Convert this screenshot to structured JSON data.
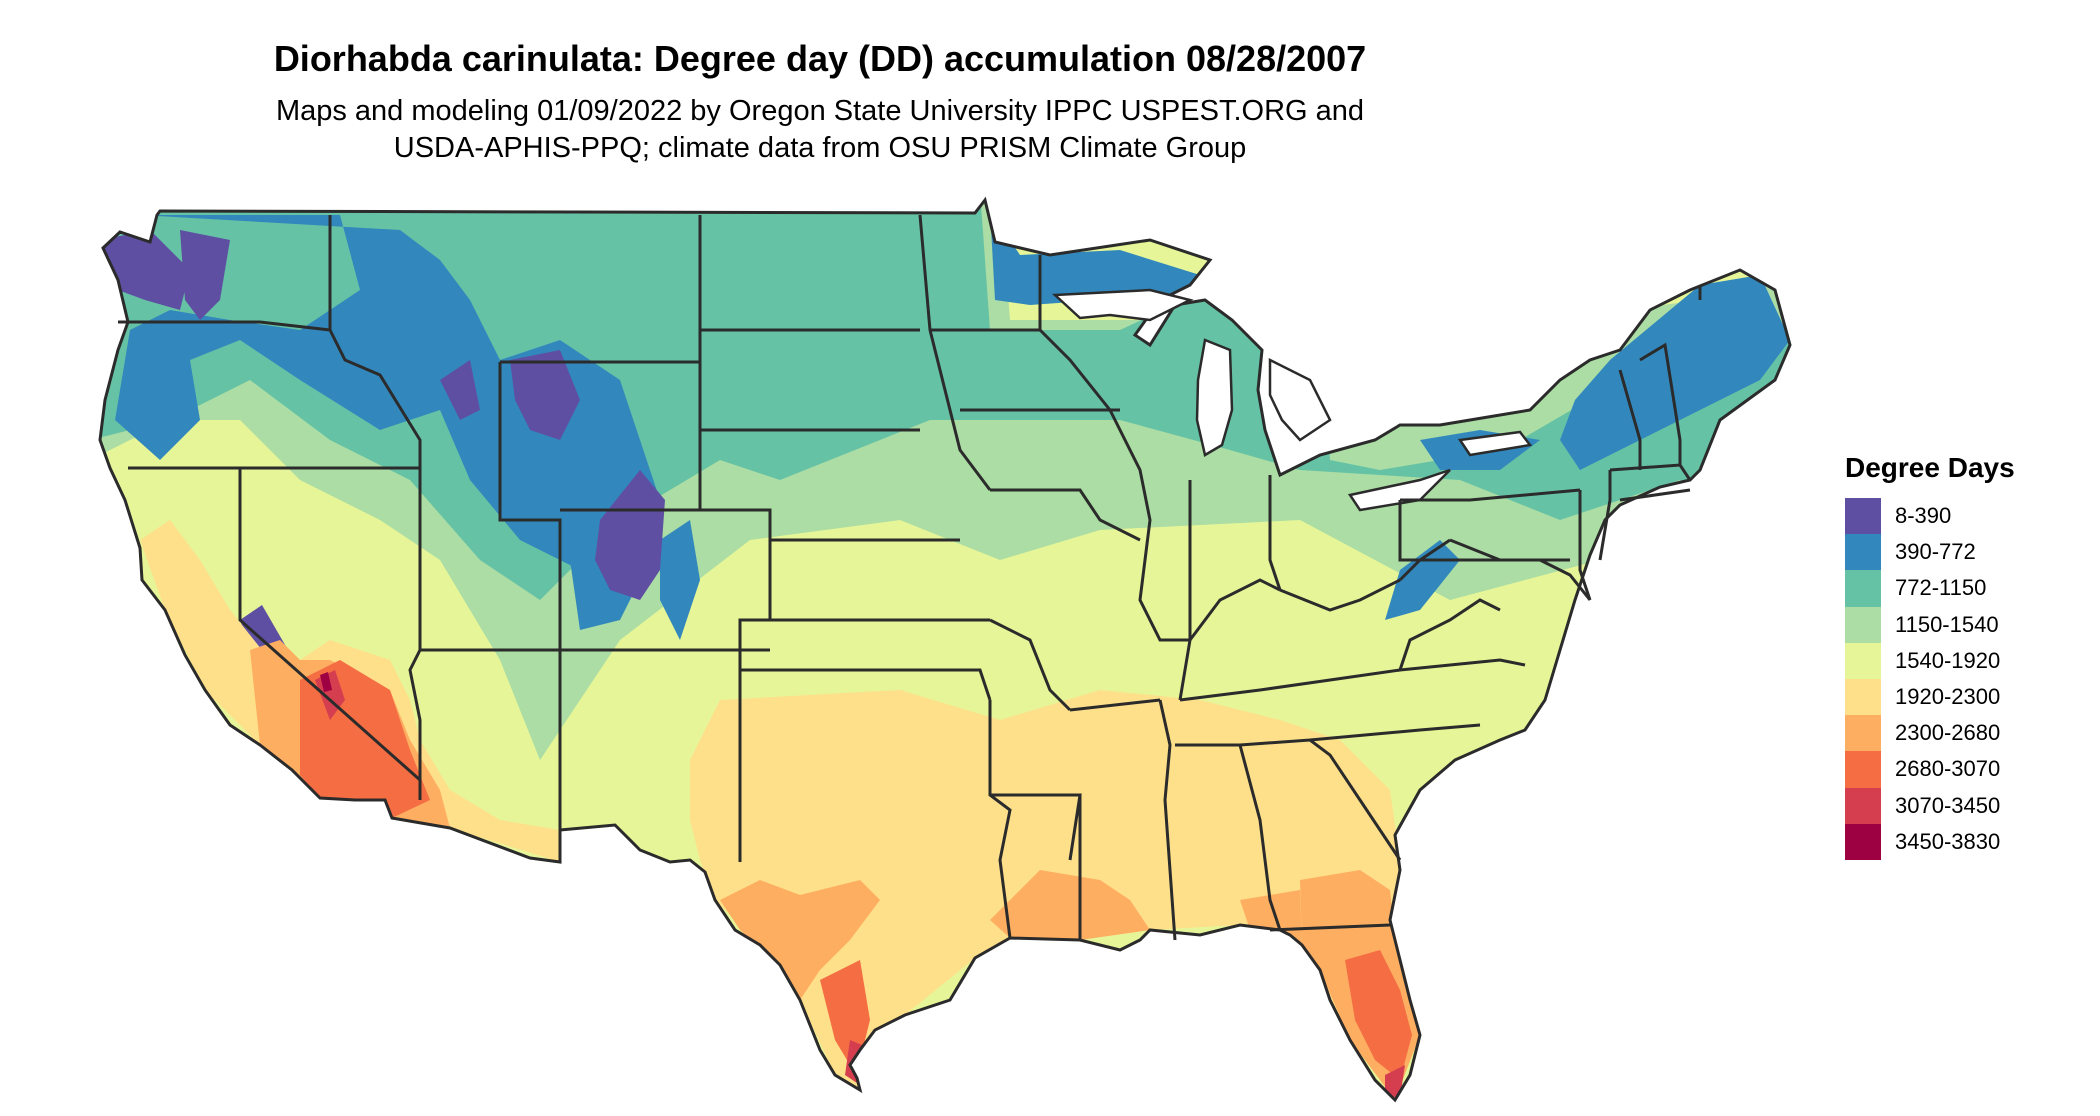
{
  "title": "Diorhabda carinulata: Degree day (DD) accumulation 08/28/2007",
  "subtitle_lines": [
    "Maps and modeling 01/09/2022 by Oregon State University IPPC USPEST.ORG and",
    "USDA-APHIS-PPQ; climate data from OSU PRISM Climate Group"
  ],
  "legend": {
    "title": "Degree Days",
    "items": [
      {
        "label": "8-390",
        "color": "#5E4FA2"
      },
      {
        "label": "390-772",
        "color": "#3288BD"
      },
      {
        "label": "772-1150",
        "color": "#66C2A5"
      },
      {
        "label": "1150-1540",
        "color": "#ABDDA4"
      },
      {
        "label": "1540-1920",
        "color": "#E6F598"
      },
      {
        "label": "1920-2300",
        "color": "#FEE08B"
      },
      {
        "label": "2300-2680",
        "color": "#FDAE61"
      },
      {
        "label": "2680-3070",
        "color": "#F46D43"
      },
      {
        "label": "3070-3450",
        "color": "#D53E4F"
      },
      {
        "label": "3450-3830",
        "color": "#9E0142"
      }
    ]
  },
  "colors": {
    "state_border": "#2b2b2b",
    "water": "#ffffff"
  }
}
